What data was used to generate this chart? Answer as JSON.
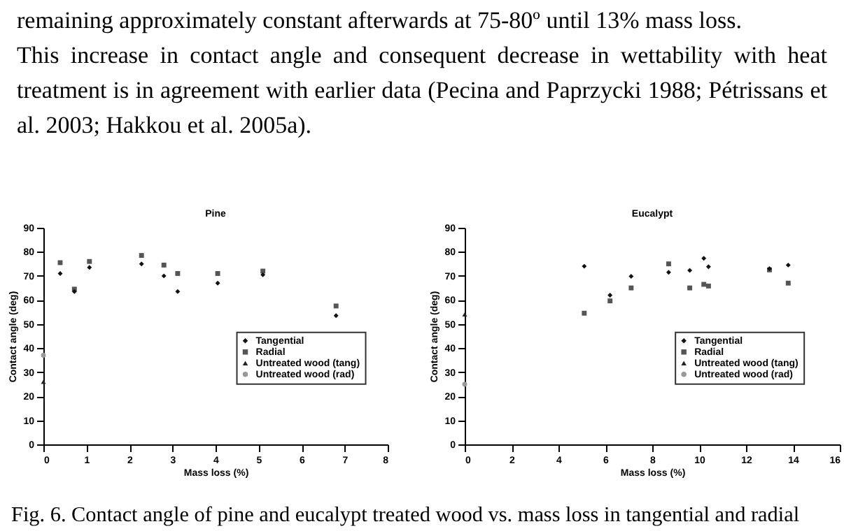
{
  "chart_data": [
    {
      "type": "scatter",
      "title": "Pine",
      "xlabel": "Mass loss (%)",
      "ylabel": "Contact angle (deg)",
      "xlim": [
        0,
        8
      ],
      "xticks": [
        0,
        1,
        2,
        3,
        4,
        5,
        6,
        7,
        8
      ],
      "ylim": [
        0,
        90
      ],
      "yticks": [
        0,
        10,
        20,
        30,
        40,
        50,
        60,
        70,
        80,
        90
      ],
      "legend": "bottom right",
      "grid": false,
      "annotations": [
        "remaining approximately constant afterwards at 75-80º until 13% mass loss.",
        "This increase in contact angle and consequent decrease in wettability with heat treatment is in agreement with earlier data (Pecina and Paprzycki 1988; Pétrissans et al. 2003; Hakkou et al. 2005a)."
      ],
      "series": [
        {
          "name": "Tangential",
          "color": "#111111",
          "marker": "diamond",
          "x": [
            0.39,
            0.72,
            1.07,
            2.28,
            2.8,
            3.12,
            4.05,
            5.1,
            6.8
          ],
          "values": [
            71,
            63.5,
            73.5,
            75,
            70,
            63.5,
            67,
            70.5,
            53.5
          ]
        },
        {
          "name": "Radial",
          "color": "#555555",
          "marker": "square",
          "x": [
            0.39,
            0.72,
            1.07,
            2.28,
            2.8,
            3.12,
            4.05,
            5.1,
            6.8
          ],
          "values": [
            75.5,
            64.5,
            76,
            78.5,
            74.5,
            71,
            71,
            72,
            57.5
          ]
        },
        {
          "name": "Untreated wood (tang)",
          "color": "#222222",
          "marker": "triangle",
          "x": [
            0
          ],
          "values": [
            26
          ]
        },
        {
          "name": "Untreated wood (rad)",
          "color": "#999999",
          "marker": "circle",
          "x": [
            0
          ],
          "values": [
            37
          ]
        }
      ]
    },
    {
      "type": "scatter",
      "title": "Eucalypt",
      "xlabel": "Mass loss (%)",
      "ylabel": "Contact angle (deg)",
      "xlim": [
        0,
        16
      ],
      "xticks": [
        0,
        2,
        4,
        6,
        8,
        10,
        12,
        14,
        16
      ],
      "ylim": [
        0,
        90
      ],
      "yticks": [
        0,
        10,
        20,
        30,
        40,
        50,
        60,
        70,
        80,
        90
      ],
      "legend": "bottom right",
      "grid": false,
      "annotations": [
        "Fig. 6. Contact angle of pine and eucalypt treated wood vs. mass loss in tangential and radial"
      ],
      "series": [
        {
          "name": "Tangential",
          "color": "#111111",
          "marker": "diamond",
          "x": [
            5.1,
            6.2,
            7.1,
            8.7,
            9.6,
            10.2,
            10.4,
            13,
            13.8
          ],
          "values": [
            74,
            62,
            69.8,
            71.5,
            72.3,
            77.3,
            73.8,
            73,
            74.5
          ]
        },
        {
          "name": "Radial",
          "color": "#555555",
          "marker": "square",
          "x": [
            5.1,
            6.2,
            7.1,
            8.7,
            9.6,
            10.2,
            10.4,
            13,
            13.8
          ],
          "values": [
            54.5,
            59.6,
            65,
            75,
            65,
            66.5,
            65.8,
            72.5,
            67
          ]
        },
        {
          "name": "Untreated wood (tang)",
          "color": "#222222",
          "marker": "triangle",
          "x": [
            0
          ],
          "values": [
            54
          ]
        },
        {
          "name": "Untreated wood (rad)",
          "color": "#999999",
          "marker": "circle",
          "x": [
            0
          ],
          "values": [
            25
          ]
        }
      ]
    }
  ]
}
